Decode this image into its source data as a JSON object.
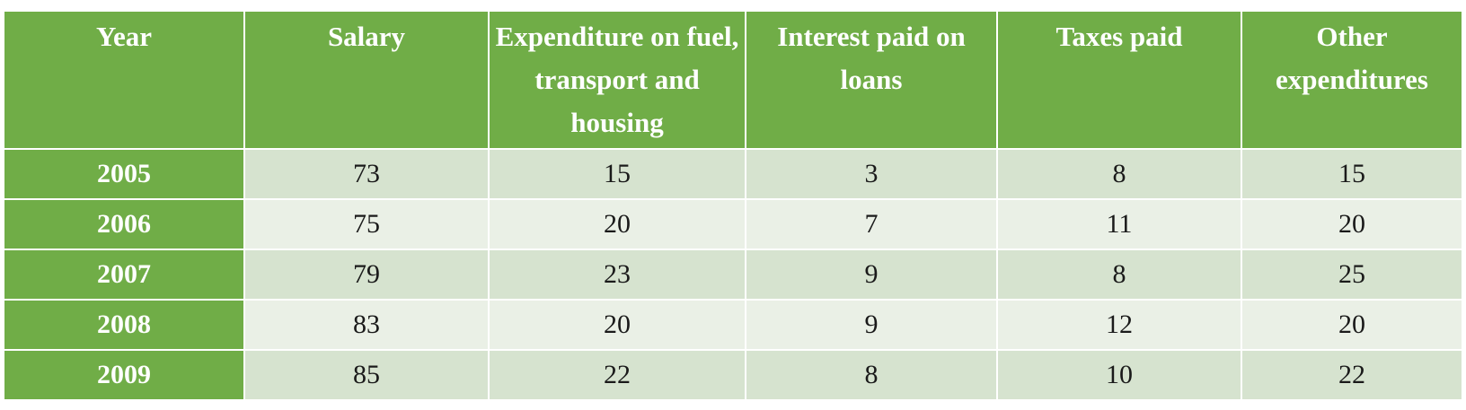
{
  "chart_data": {
    "type": "table",
    "columns": [
      "Year",
      "Salary",
      "Expenditure on fuel, transport and housing",
      "Interest paid on loans",
      "Taxes paid",
      "Other expenditures"
    ],
    "rows": [
      [
        "2005",
        "73",
        "15",
        "3",
        "8",
        "15"
      ],
      [
        "2006",
        "75",
        "20",
        "7",
        "11",
        "20"
      ],
      [
        "2007",
        "79",
        "23",
        "9",
        "8",
        "25"
      ],
      [
        "2008",
        "83",
        "20",
        "9",
        "12",
        "20"
      ],
      [
        "2009",
        "85",
        "22",
        "8",
        "10",
        "22"
      ]
    ]
  }
}
